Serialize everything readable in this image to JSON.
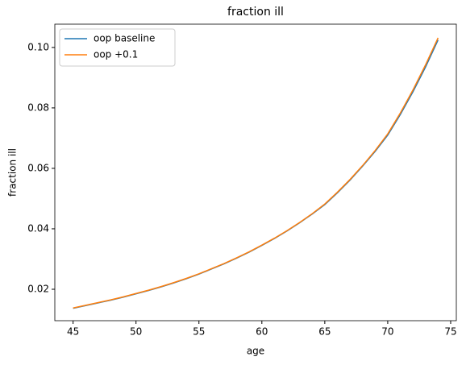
{
  "chart_data": {
    "type": "line",
    "title": "fraction ill",
    "xlabel": "age",
    "ylabel": "fraction ill",
    "x": [
      45,
      46,
      47,
      48,
      49,
      50,
      51,
      52,
      53,
      54,
      55,
      56,
      57,
      58,
      59,
      60,
      61,
      62,
      63,
      64,
      65,
      66,
      67,
      68,
      69,
      70,
      71,
      72,
      73,
      74
    ],
    "series": [
      {
        "name": "oop baseline",
        "color": "#1f77b4",
        "values": [
          0.0137,
          0.0146,
          0.0155,
          0.0164,
          0.0174,
          0.0185,
          0.0196,
          0.0208,
          0.0221,
          0.0235,
          0.025,
          0.0267,
          0.0284,
          0.0303,
          0.0323,
          0.0345,
          0.0368,
          0.0393,
          0.042,
          0.0449,
          0.048,
          0.0519,
          0.0561,
          0.0607,
          0.0656,
          0.071,
          0.0778,
          0.0853,
          0.0935,
          0.1025
        ]
      },
      {
        "name": "oop +0.1",
        "color": "#ff7f0e",
        "values": [
          0.0138,
          0.0147,
          0.0156,
          0.0165,
          0.0175,
          0.0186,
          0.0197,
          0.0209,
          0.0222,
          0.0236,
          0.0251,
          0.0268,
          0.0285,
          0.0304,
          0.0324,
          0.0346,
          0.0369,
          0.0394,
          0.0421,
          0.045,
          0.0482,
          0.0521,
          0.0563,
          0.0609,
          0.0659,
          0.0714,
          0.0783,
          0.0859,
          0.0942,
          0.1032
        ]
      }
    ],
    "xlim": [
      43.55,
      75.45
    ],
    "xticks": [
      45,
      50,
      55,
      60,
      65,
      70,
      75
    ],
    "ylim": [
      0.0096,
      0.1077
    ],
    "yticks": [
      0.02,
      0.04,
      0.06,
      0.08,
      {
        "value": 0.1,
        "label": "0.10"
      }
    ],
    "legend": "upper left",
    "grid": false
  }
}
